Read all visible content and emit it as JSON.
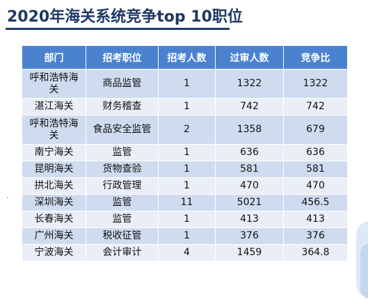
{
  "title": "2020年海关系统竞争top 10职位",
  "table": {
    "headers": [
      "部门",
      "招考职位",
      "招考人数",
      "过审人数",
      "竞争比"
    ],
    "rows": [
      {
        "dept": "呼和浩特海关",
        "position": "商品监管",
        "hired": "1",
        "passed": "1322",
        "ratio": "1322"
      },
      {
        "dept": "湛江海关",
        "position": "财务稽查",
        "hired": "1",
        "passed": "742",
        "ratio": "742"
      },
      {
        "dept": "呼和浩特海关",
        "position": "食品安全监管",
        "hired": "2",
        "passed": "1358",
        "ratio": "679"
      },
      {
        "dept": "南宁海关",
        "position": "监管",
        "hired": "1",
        "passed": "636",
        "ratio": "636"
      },
      {
        "dept": "昆明海关",
        "position": "货物查验",
        "hired": "1",
        "passed": "581",
        "ratio": "581"
      },
      {
        "dept": "拱北海关",
        "position": "行政管理",
        "hired": "1",
        "passed": "470",
        "ratio": "470"
      },
      {
        "dept": "深圳海关",
        "position": "监管",
        "hired": "11",
        "passed": "5021",
        "ratio": "456.5"
      },
      {
        "dept": "长春海关",
        "position": "监管",
        "hired": "1",
        "passed": "413",
        "ratio": "413"
      },
      {
        "dept": "广州海关",
        "position": "税收征管",
        "hired": "1",
        "passed": "376",
        "ratio": "376"
      },
      {
        "dept": "宁波海关",
        "position": "会计审计",
        "hired": "4",
        "passed": "1459",
        "ratio": "364.8"
      }
    ]
  }
}
